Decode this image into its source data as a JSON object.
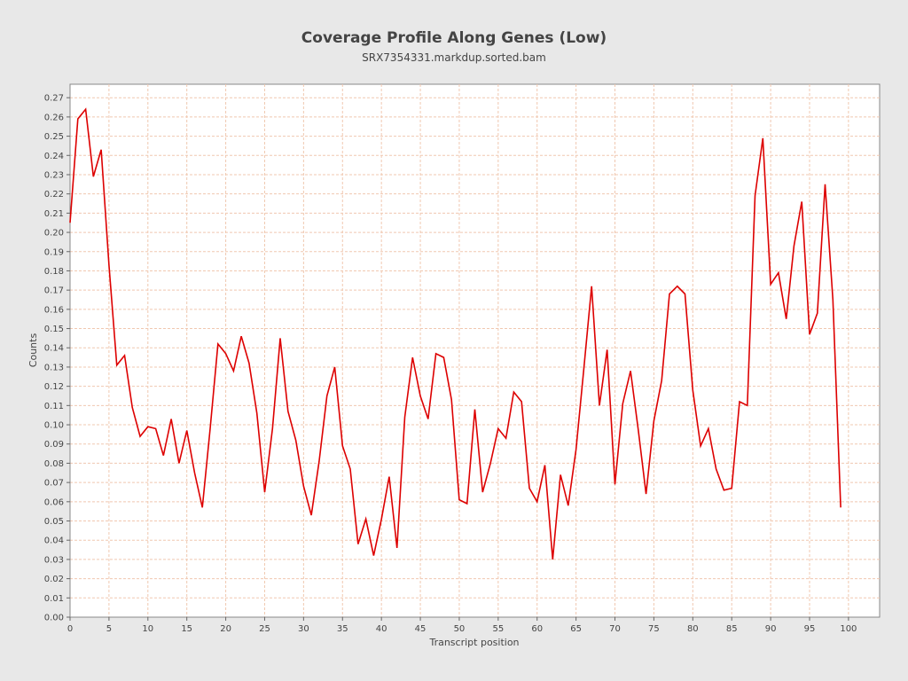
{
  "chart_data": {
    "type": "line",
    "title": "Coverage Profile Along Genes (Low)",
    "subtitle": "SRX7354331.markdup.sorted.bam",
    "xlabel": "Transcript position",
    "ylabel": "Counts",
    "xlim": [
      0,
      104
    ],
    "ylim": [
      0,
      0.277
    ],
    "xticks": [
      0,
      5,
      10,
      15,
      20,
      25,
      30,
      35,
      40,
      45,
      50,
      55,
      60,
      65,
      70,
      75,
      80,
      85,
      90,
      95,
      100
    ],
    "yticks": [
      "0.00",
      "0.01",
      "0.02",
      "0.03",
      "0.04",
      "0.05",
      "0.06",
      "0.07",
      "0.08",
      "0.09",
      "0.10",
      "0.11",
      "0.12",
      "0.13",
      "0.14",
      "0.15",
      "0.16",
      "0.17",
      "0.18",
      "0.19",
      "0.20",
      "0.21",
      "0.22",
      "0.23",
      "0.24",
      "0.25",
      "0.26",
      "0.27"
    ],
    "grid": true,
    "colors": {
      "line": "#dd0000",
      "grid": "#f0c8b0",
      "plot_bg": "#ffffff",
      "page_bg": "#e8e8e8"
    },
    "series": [
      {
        "x": [
          0,
          1,
          2,
          3,
          4,
          5,
          6,
          7,
          8,
          9,
          10,
          11,
          12,
          13,
          14,
          15,
          16,
          17,
          18,
          19,
          20,
          21,
          22,
          23,
          24,
          25,
          26,
          27,
          28,
          29,
          30,
          31,
          32,
          33,
          34,
          35,
          36,
          37,
          38,
          39,
          40,
          41,
          42,
          43,
          44,
          45,
          46,
          47,
          48,
          49,
          50,
          51,
          52,
          53,
          54,
          55,
          56,
          57,
          58,
          59,
          60,
          61,
          62,
          63,
          64,
          65,
          66,
          67,
          68,
          69,
          70,
          71,
          72,
          73,
          74,
          75,
          76,
          77,
          78,
          79,
          80,
          81,
          82,
          83,
          84,
          85,
          86,
          87,
          88,
          89,
          90,
          91,
          92,
          93,
          94,
          95,
          96,
          97,
          98,
          99
        ],
        "values": [
          0.205,
          0.259,
          0.264,
          0.229,
          0.243,
          0.183,
          0.131,
          0.136,
          0.109,
          0.094,
          0.099,
          0.098,
          0.084,
          0.103,
          0.08,
          0.097,
          0.075,
          0.057,
          0.098,
          0.142,
          0.137,
          0.128,
          0.146,
          0.132,
          0.106,
          0.065,
          0.098,
          0.145,
          0.107,
          0.092,
          0.068,
          0.053,
          0.081,
          0.115,
          0.13,
          0.089,
          0.077,
          0.038,
          0.051,
          0.032,
          0.051,
          0.073,
          0.036,
          0.104,
          0.135,
          0.115,
          0.103,
          0.137,
          0.135,
          0.113,
          0.061,
          0.059,
          0.108,
          0.065,
          0.08,
          0.098,
          0.093,
          0.117,
          0.112,
          0.067,
          0.06,
          0.079,
          0.03,
          0.074,
          0.058,
          0.087,
          0.129,
          0.172,
          0.11,
          0.139,
          0.069,
          0.111,
          0.128,
          0.097,
          0.064,
          0.102,
          0.123,
          0.168,
          0.172,
          0.168,
          0.118,
          0.089,
          0.098,
          0.077,
          0.066,
          0.067,
          0.112,
          0.11,
          0.219,
          0.249,
          0.173,
          0.179,
          0.155,
          0.193,
          0.216,
          0.147,
          0.158,
          0.225,
          0.165,
          0.057
        ]
      }
    ]
  }
}
